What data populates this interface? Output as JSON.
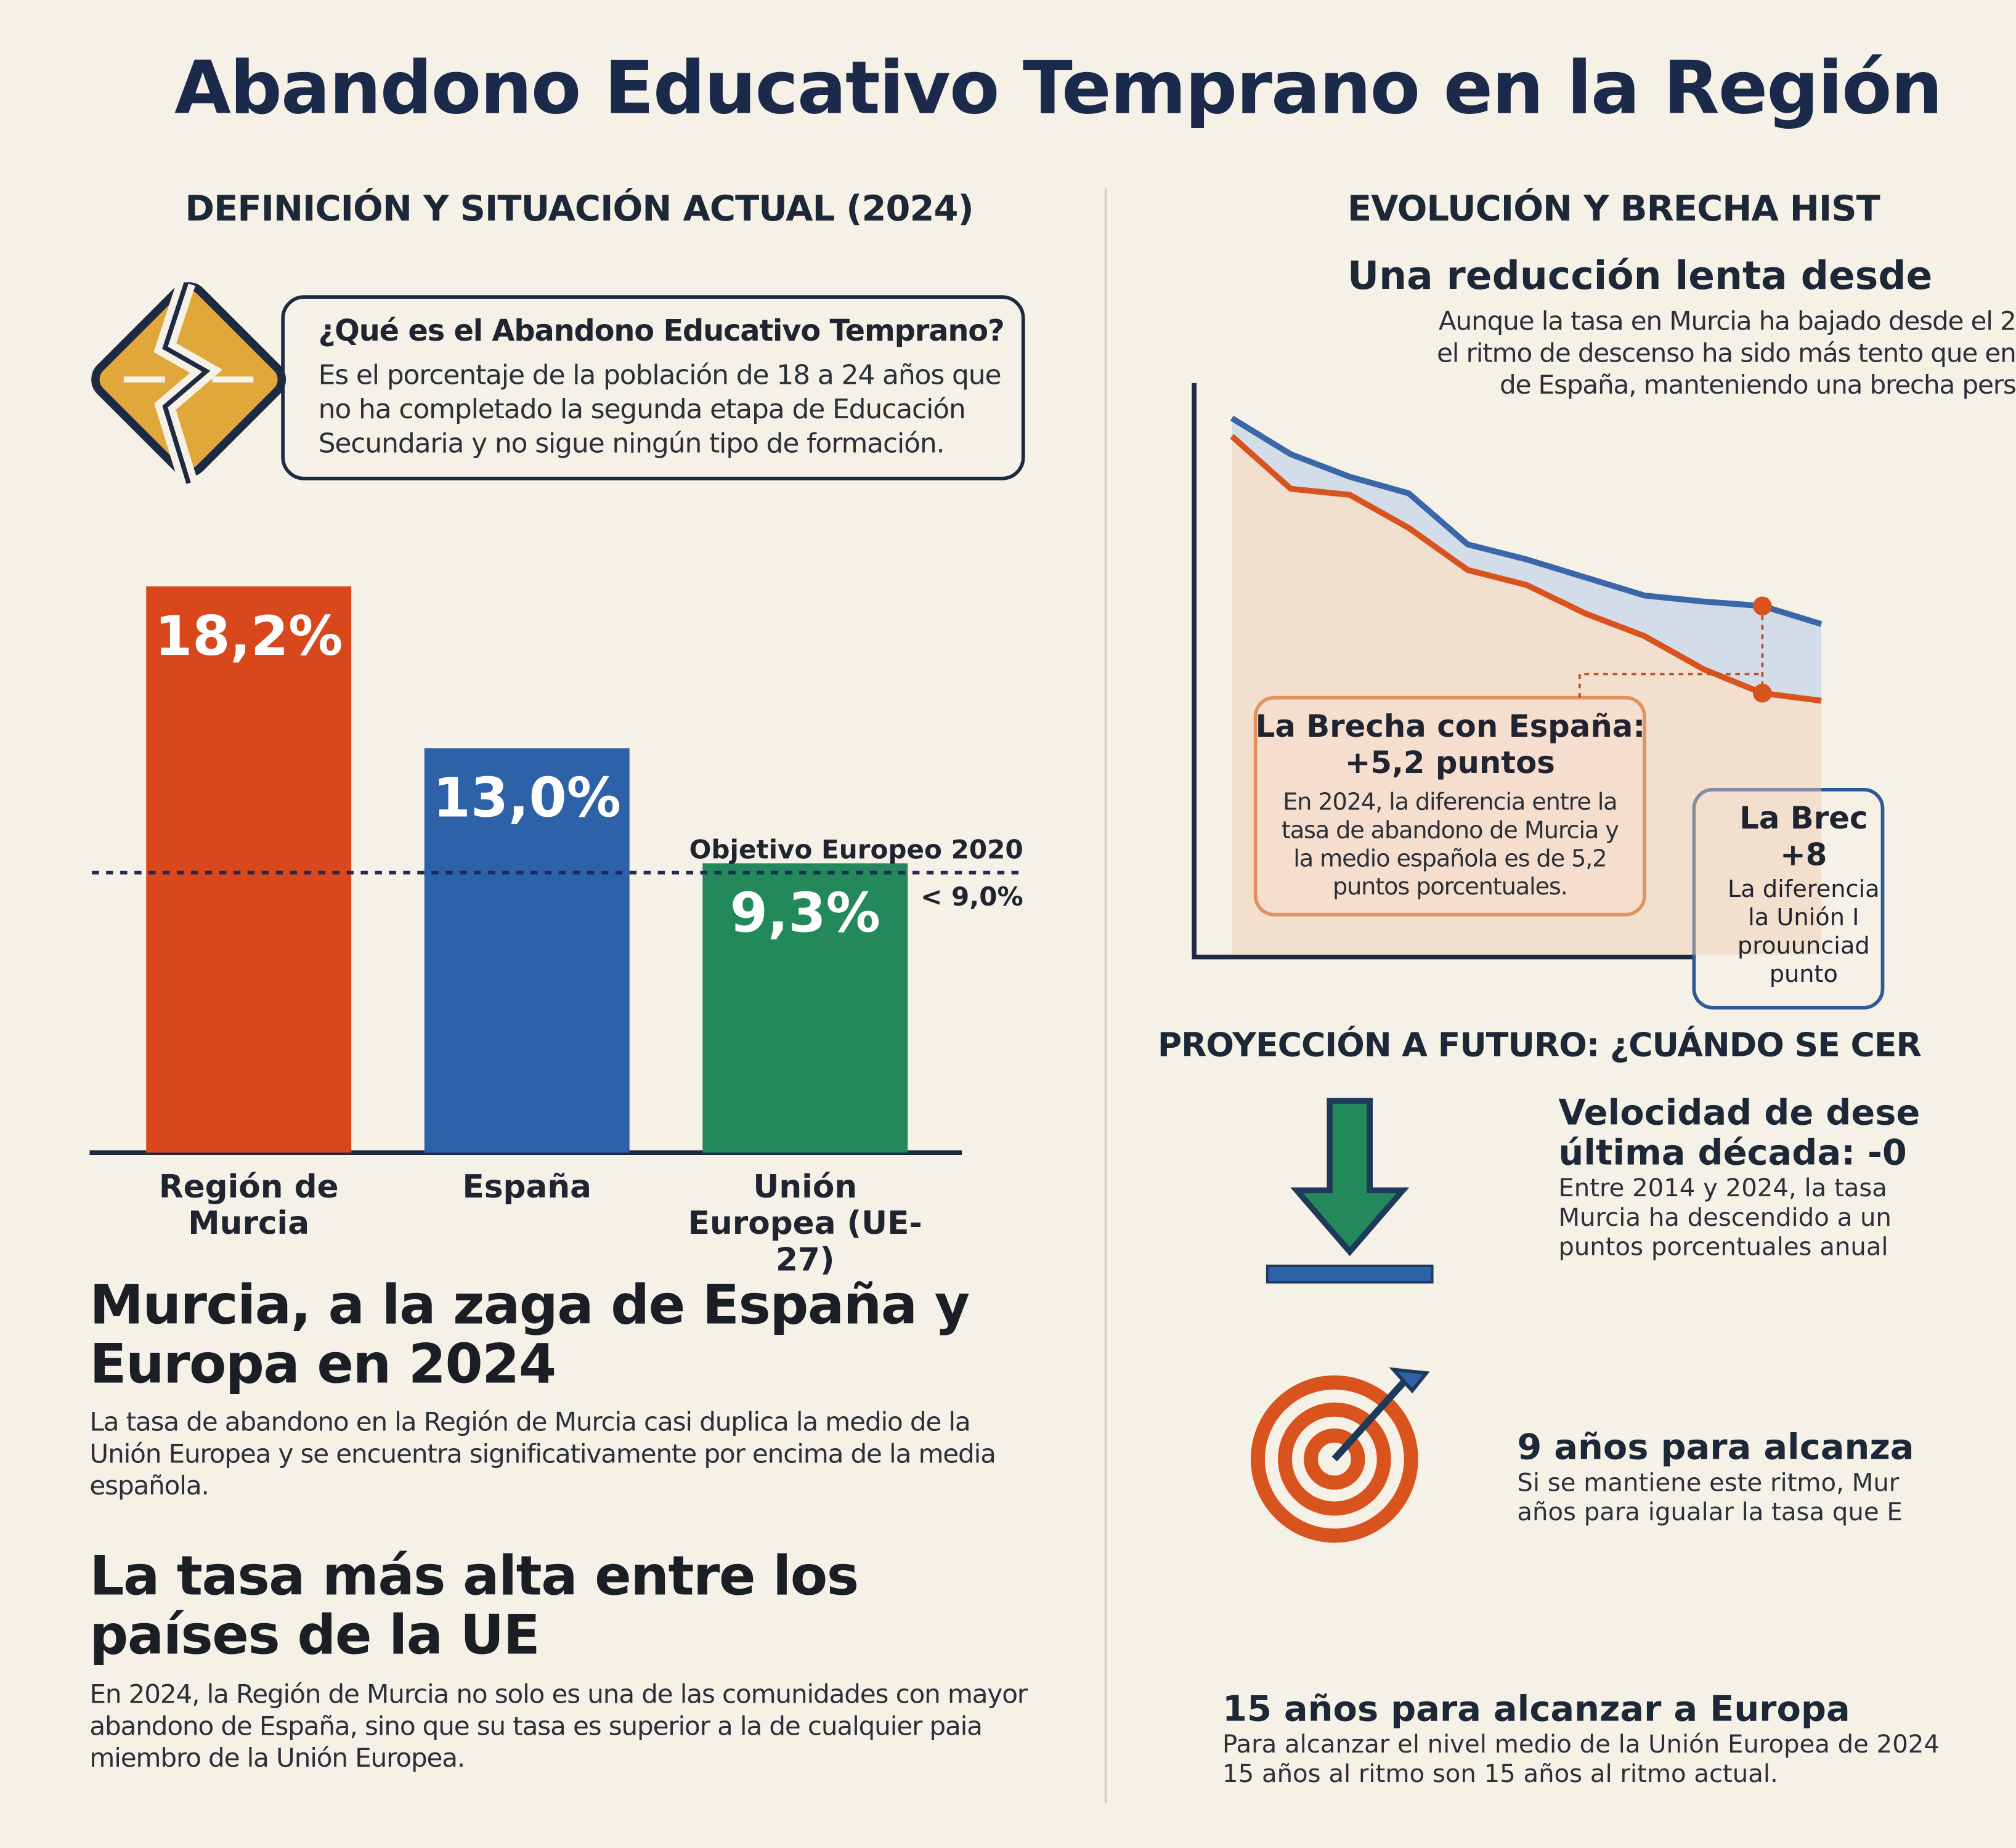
{
  "title": "Abandono Educativo Temprano en la Región",
  "left": {
    "heading": "DEFINICIÓN Y SITUACIÓN ACTUAL (2024)",
    "definition": {
      "title": "¿Qué es el Abandono Educativo Temprano?",
      "text": "Es el porcentaje de la población de 18 a 24 años que no ha completado la segunda etapa de Educación Secundaria y no sigue ningún tipo de formación."
    },
    "blocks": [
      {
        "title": "Murcia, a la zaga de España y Europa en 2024",
        "text": "La tasa de abandono en la Región de Murcia casi duplica la medio de la Unión Europea y se encuentra significativamente por encima de la media española."
      },
      {
        "title": "La tasa más alta entre los países de la UE",
        "text": "En 2024, la Región de Murcia no solo es una de las comunidades con mayor abandono de España, sino que su tasa es superior a la de cualquier paia miembro de la Unión Europea."
      }
    ]
  },
  "right": {
    "heading": "EVOLUCIÓN Y BRECHA HIST",
    "subtitle": "Una reducción lenta desde",
    "intro": [
      "Aunque la tasa en Murcia ha bajado desde el 2",
      "el ritmo de descenso ha sido más tento que en",
      "de España, manteniendo una brecha pers"
    ],
    "gap_spain": {
      "title": [
        "La Brecha con España:",
        "+5,2 puntos"
      ],
      "text": "En 2024, la diferencia entre la tasa de abandono de Murcia y la medio española es de 5,2 puntos porcentuales."
    },
    "gap_eu": {
      "title": [
        "La Brec",
        "+8"
      ],
      "text": [
        "La diferencia",
        "la Unión I",
        "prouunciad",
        "punto"
      ]
    },
    "projection_heading": "PROYECCIÓN A FUTURO: ¿CUÁNDO SE CER",
    "items": [
      {
        "title": [
          "Velocidad de dese",
          "última década: -0"
        ],
        "text": [
          "Entre 2014 y 2024, la tasa",
          "Murcia ha descendido a un",
          "puntos porcentuales anual"
        ]
      },
      {
        "title": [
          "9 años para alcanza"
        ],
        "text": [
          "Si se mantiene este ritmo, Mur",
          "años para igualar la tasa que E"
        ]
      },
      {
        "title": [
          "15 años para alcanzar a Europa"
        ],
        "text": [
          "Para alcanzar el nivel medio de la Unión Europea de 2024",
          "15 años al ritmo son 15 años al ritmo actual."
        ]
      }
    ]
  },
  "chart_data": [
    {
      "type": "bar",
      "categories": [
        "Región de Murcia",
        "España",
        "Unión Europea (UE-27)"
      ],
      "values": [
        18.2,
        13.0,
        9.3
      ],
      "value_labels": [
        "18,2%",
        "13,0%",
        "9,3%"
      ],
      "colors": [
        "#d9481c",
        "#2e62a8",
        "#23885a"
      ],
      "ylim": [
        0,
        20
      ],
      "reference": {
        "value": 9,
        "label": "Objetivo Europeo 2020",
        "value_label": "< 9,0%"
      }
    },
    {
      "type": "line",
      "categories": [
        null,
        null,
        null,
        null,
        null,
        null,
        null,
        null,
        null,
        null,
        null
      ],
      "ylim": [
        0,
        40
      ],
      "series": [
        {
          "color": "#3a67a8",
          "values": [
            35.7,
            33.3,
            31.8,
            30.7,
            27.3,
            26.3,
            25.1,
            23.9,
            23.5,
            23.2,
            22.0
          ]
        },
        {
          "color": "#d9531e",
          "values": [
            34.5,
            31.0,
            30.6,
            28.4,
            25.6,
            24.6,
            22.7,
            21.2,
            19.0,
            17.4,
            16.9
          ]
        }
      ]
    }
  ]
}
